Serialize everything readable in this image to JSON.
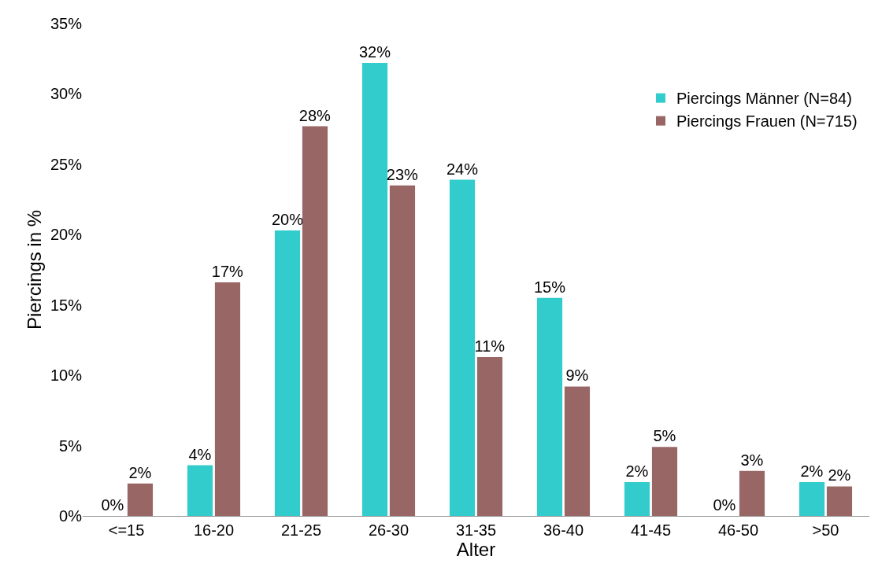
{
  "chart_data": {
    "type": "bar",
    "xlabel": "Alter",
    "ylabel": "Piercings in %",
    "categories": [
      "<=15",
      "16-20",
      "21-25",
      "26-30",
      "31-35",
      "36-40",
      "41-45",
      "46-50",
      ">50"
    ],
    "series": [
      {
        "name": "Piercings Männer (N=84)",
        "color": "#33cccc",
        "values": [
          0,
          3.6,
          20.3,
          32.2,
          23.9,
          15.5,
          2.4,
          0,
          2.4
        ],
        "value_labels": [
          "0%",
          "4%",
          "20%",
          "32%",
          "24%",
          "15%",
          "2%",
          "0%",
          "2%"
        ]
      },
      {
        "name": "Piercings Frauen (N=715)",
        "color": "#996666",
        "values": [
          2.3,
          16.6,
          27.7,
          23.5,
          11.3,
          9.2,
          4.9,
          3.2,
          2.1
        ],
        "value_labels": [
          "2%",
          "17%",
          "28%",
          "23%",
          "11%",
          "9%",
          "5%",
          "3%",
          "2%"
        ]
      }
    ],
    "ylim": [
      0,
      35
    ],
    "yticks": [
      {
        "value": 0,
        "label": "0%"
      },
      {
        "value": 5,
        "label": "5%"
      },
      {
        "value": 10,
        "label": "10%"
      },
      {
        "value": 15,
        "label": "15%"
      },
      {
        "value": 20,
        "label": "20%"
      },
      {
        "value": 25,
        "label": "25%"
      },
      {
        "value": 30,
        "label": "30%"
      },
      {
        "value": 35,
        "label": "35%"
      }
    ],
    "legend": "top right"
  }
}
